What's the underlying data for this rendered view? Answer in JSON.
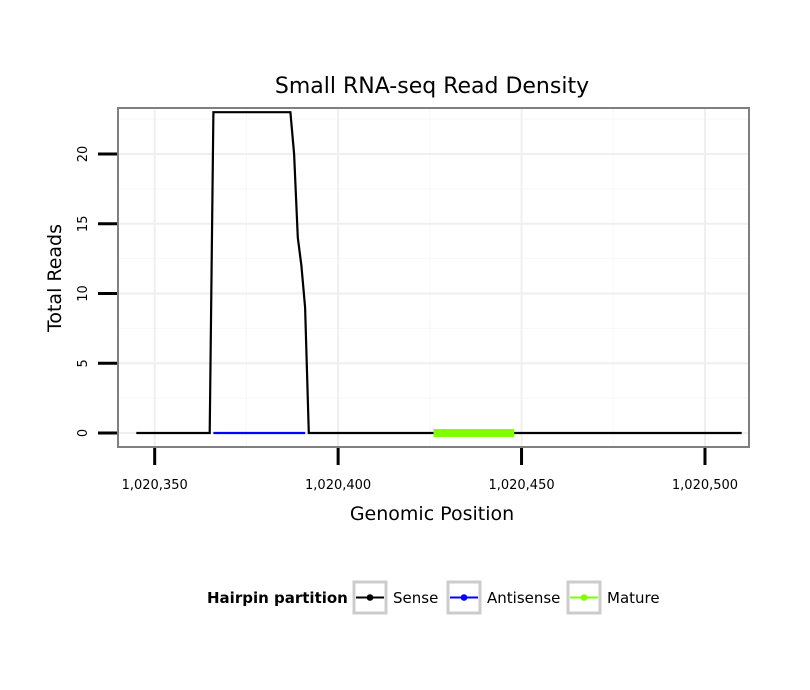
{
  "chart_data": {
    "type": "line",
    "title": "Small RNA-seq Read Density",
    "xlabel": "Genomic Position",
    "ylabel": "Total Reads",
    "xlim": [
      1020340,
      1020512
    ],
    "ylim": [
      -1,
      23.3
    ],
    "x_ticks": [
      1020350,
      1020400,
      1020450,
      1020500
    ],
    "x_tick_labels": [
      "1,020,350",
      "1,020,400",
      "1,020,450",
      "1,020,500"
    ],
    "y_ticks": [
      0,
      5,
      10,
      15,
      20
    ],
    "y_tick_labels": [
      "0",
      "5",
      "10",
      "15",
      "20"
    ],
    "grid": true,
    "legend": {
      "title": "Hairpin partition",
      "placement": "bottom",
      "entries": [
        "Sense",
        "Antisense",
        "Mature"
      ]
    },
    "series": [
      {
        "name": "Sense",
        "color": "#000000",
        "x": [
          1020345,
          1020365,
          1020366,
          1020387,
          1020388,
          1020389,
          1020390,
          1020391,
          1020392,
          1020510
        ],
        "y": [
          0,
          0,
          23,
          23,
          20,
          14,
          12,
          9,
          0,
          0
        ]
      },
      {
        "name": "Antisense",
        "color": "#0000ff",
        "x": [
          1020366,
          1020391
        ],
        "y": [
          0,
          0
        ]
      },
      {
        "name": "Mature",
        "color": "#7fff00",
        "x": [
          1020426,
          1020448
        ],
        "y": [
          0,
          0
        ]
      }
    ]
  }
}
